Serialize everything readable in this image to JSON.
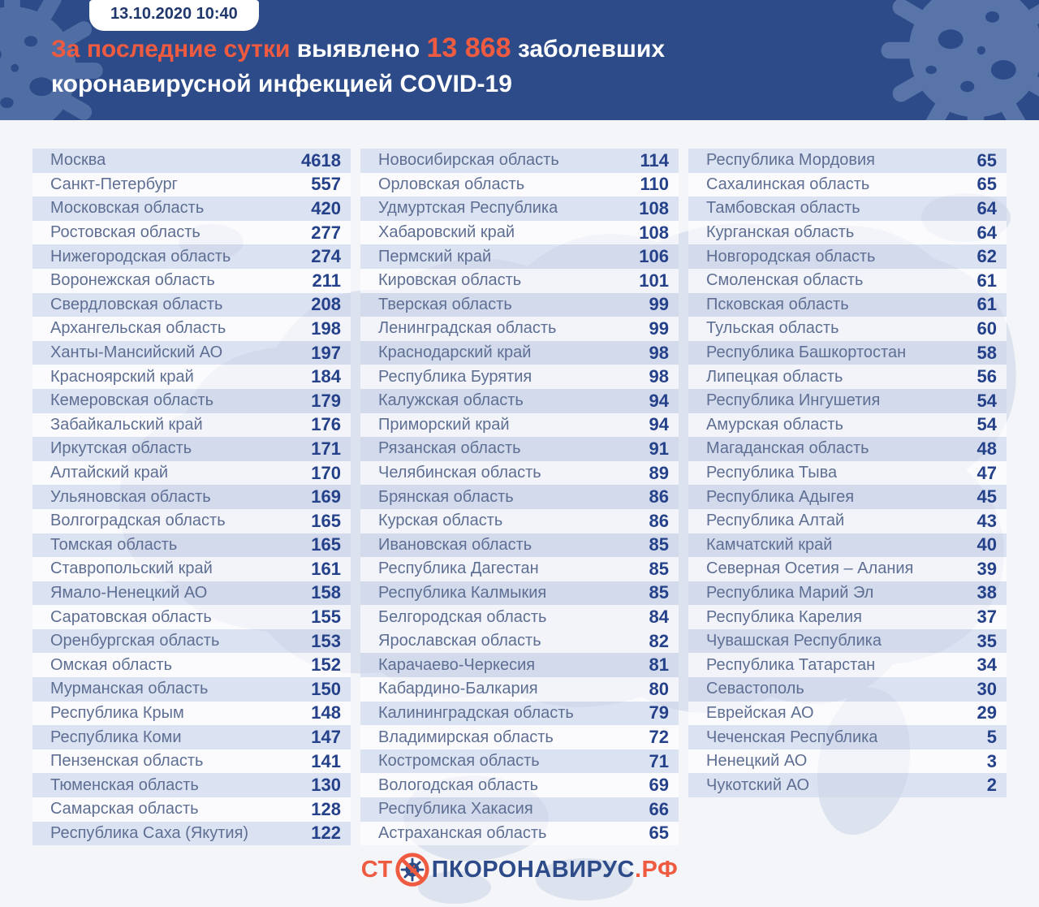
{
  "header": {
    "badge_datetime": "13.10.2020 10:40",
    "headline": {
      "part1": "За последние сутки",
      "part2": " выявлено ",
      "part3": "13 868",
      "part4": "  заболевших",
      "line2": "коронавирусной инфекцией COVID-19"
    }
  },
  "footer": {
    "logo_prefix": "СТ",
    "logo_body": "ПКОРОНАВИРУС",
    "logo_tld": ".РФ",
    "full_name": "СТОПКОРОНАВИРУС.РФ"
  },
  "colors": {
    "header_bg": "#2d4b88",
    "header_decoration": "#5b77ab",
    "accent_orange": "#ef5b40",
    "badge_text": "#21386d",
    "body_bg": "#f3f5f9",
    "map_silhouette": "#dce2ee",
    "stripe_row": "rgba(203,214,235,0.6)",
    "white_row": "rgba(255,255,255,0.62)",
    "region_text": "#5e6f93",
    "value_text": "#24418a"
  },
  "chart_data": {
    "type": "table",
    "title": "За последние сутки выявлено 13 868 заболевших коронавирусной инфекцией COVID-19",
    "timestamp": "13.10.2020 10:40",
    "total_new_cases": 13868,
    "columns_layout": 3,
    "columns": [
      {
        "rows": [
          [
            "Москва",
            "4618"
          ],
          [
            "Санкт-Петербург",
            "557"
          ],
          [
            "Московская область",
            "420"
          ],
          [
            "Ростовская область",
            "277"
          ],
          [
            "Нижегородская область",
            "274"
          ],
          [
            "Воронежская область",
            "211"
          ],
          [
            "Свердловская область",
            "208"
          ],
          [
            "Архангельская область",
            "198"
          ],
          [
            "Ханты-Мансийский АО",
            "197"
          ],
          [
            "Красноярский край",
            "184"
          ],
          [
            "Кемеровская область",
            "179"
          ],
          [
            "Забайкальский край",
            "176"
          ],
          [
            "Иркутская область",
            "171"
          ],
          [
            "Алтайский край",
            "170"
          ],
          [
            "Ульяновская область",
            "169"
          ],
          [
            "Волгоградская область",
            "165"
          ],
          [
            "Томская область",
            "165"
          ],
          [
            "Ставропольский край",
            "161"
          ],
          [
            "Ямало-Ненецкий АО",
            "158"
          ],
          [
            "Саратовская область",
            "155"
          ],
          [
            "Оренбургская область",
            "153"
          ],
          [
            "Омская область",
            "152"
          ],
          [
            "Мурманская область",
            "150"
          ],
          [
            "Республика Крым",
            "148"
          ],
          [
            "Республика Коми",
            "147"
          ],
          [
            "Пензенская область",
            "141"
          ],
          [
            "Тюменская область",
            "130"
          ],
          [
            "Самарская область",
            "128"
          ],
          [
            "Республика Саха (Якутия)",
            "122"
          ]
        ]
      },
      {
        "rows": [
          [
            "Новосибирская область",
            "114"
          ],
          [
            "Орловская область",
            "110"
          ],
          [
            "Удмуртская Республика",
            "108"
          ],
          [
            "Хабаровский край",
            "108"
          ],
          [
            "Пермский край",
            "106"
          ],
          [
            "Кировская область",
            "101"
          ],
          [
            "Тверская область",
            "99"
          ],
          [
            "Ленинградская область",
            "99"
          ],
          [
            "Краснодарский край",
            "98"
          ],
          [
            "Республика Бурятия",
            "98"
          ],
          [
            "Калужская область",
            "94"
          ],
          [
            "Приморский край",
            "94"
          ],
          [
            "Рязанская область",
            "91"
          ],
          [
            "Челябинская область",
            "89"
          ],
          [
            "Брянская область",
            "86"
          ],
          [
            "Курская область",
            "86"
          ],
          [
            "Ивановская область",
            "85"
          ],
          [
            "Республика Дагестан",
            "85"
          ],
          [
            "Республика Калмыкия",
            "85"
          ],
          [
            "Белгородская область",
            "84"
          ],
          [
            "Ярославская область",
            "82"
          ],
          [
            "Карачаево-Черкесия",
            "81"
          ],
          [
            "Кабардино-Балкария",
            "80"
          ],
          [
            "Калининградская область",
            "79"
          ],
          [
            "Владимирская область",
            "72"
          ],
          [
            "Костромская область",
            "71"
          ],
          [
            "Вологодская область",
            "69"
          ],
          [
            "Республика Хакасия",
            "66"
          ],
          [
            "Астраханская область",
            "65"
          ]
        ]
      },
      {
        "rows": [
          [
            "Республика Мордовия",
            "65"
          ],
          [
            "Сахалинская область",
            "65"
          ],
          [
            "Тамбовская область",
            "64"
          ],
          [
            "Курганская область",
            "64"
          ],
          [
            "Новгородская область",
            "62"
          ],
          [
            "Смоленская область",
            "61"
          ],
          [
            "Псковская область",
            "61"
          ],
          [
            "Тульская область",
            "60"
          ],
          [
            "Республика Башкортостан",
            "58"
          ],
          [
            "Липецкая область",
            "56"
          ],
          [
            "Республика Ингушетия",
            "54"
          ],
          [
            "Амурская область",
            "54"
          ],
          [
            "Магаданская область",
            "48"
          ],
          [
            "Республика Тыва",
            "47"
          ],
          [
            "Республика Адыгея",
            "45"
          ],
          [
            "Республика Алтай",
            "43"
          ],
          [
            "Камчатский край",
            "40"
          ],
          [
            "Северная Осетия – Алания",
            "39"
          ],
          [
            "Республика Марий Эл",
            "38"
          ],
          [
            "Республика Карелия",
            "37"
          ],
          [
            "Чувашская Республика",
            "35"
          ],
          [
            "Республика Татарстан",
            "34"
          ],
          [
            "Севастополь",
            "30"
          ],
          [
            "Еврейская АО",
            "29"
          ],
          [
            "Чеченская Республика",
            "5"
          ],
          [
            "Ненецкий АО",
            "3"
          ],
          [
            "Чукотский АО",
            "2"
          ]
        ]
      }
    ]
  }
}
